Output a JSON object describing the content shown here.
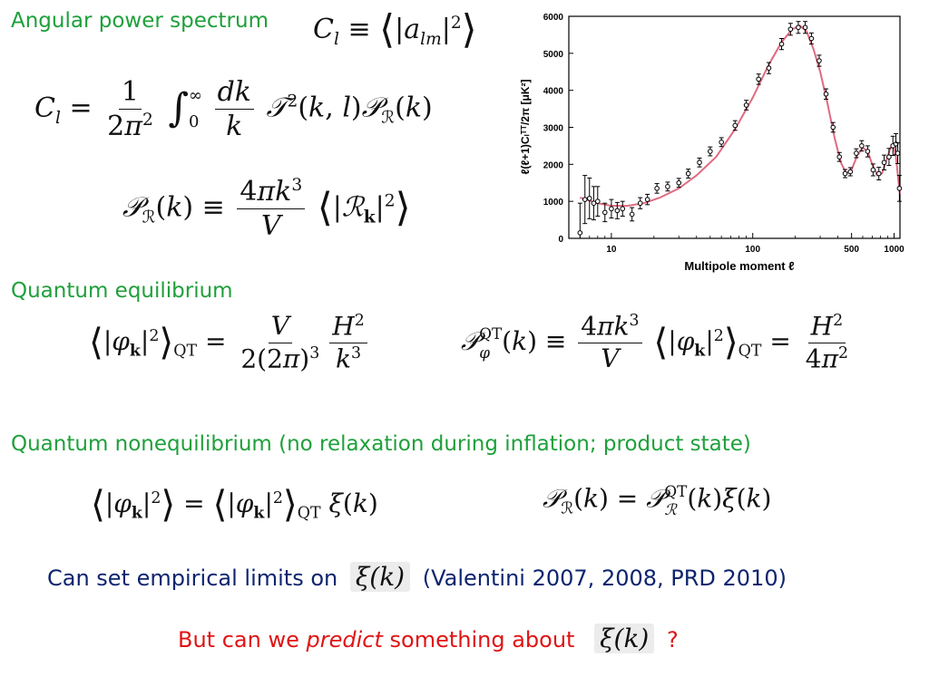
{
  "headings": {
    "aps": "Angular power spectrum",
    "qe": "Quantum equilibrium",
    "qne": "Quantum nonequilibrium (no relaxation during inflation; product state)"
  },
  "limits_line": {
    "prefix": "Can set empirical limits on",
    "xi": "ξ(k)",
    "suffix": "(Valentini 2007, 2008, PRD 2010)",
    "color": "#0d2470"
  },
  "predict_line": {
    "part1": "But can we",
    "emph": "predict",
    "part2": "something about",
    "xi": "ξ(k)",
    "end": "?",
    "color": "#e01414"
  },
  "chart_data": {
    "type": "scatter",
    "xlabel": "Multipole moment ℓ",
    "ylabel": "ℓ(ℓ+1)Cₗᵀᵀ/2π [μK²]",
    "xscale": "log",
    "xlim": [
      5,
      1100
    ],
    "ylim": [
      0,
      6000
    ],
    "xticks": [
      "10",
      "100",
      "500",
      "1000"
    ],
    "xtick_values": [
      10,
      100,
      500,
      1000
    ],
    "yticks": [
      "0",
      "1000",
      "2000",
      "3000",
      "4000",
      "5000",
      "6000"
    ],
    "ytick_values": [
      0,
      1000,
      2000,
      3000,
      4000,
      5000,
      6000
    ],
    "grid": false,
    "curve_color": "#e06a80",
    "points": [
      {
        "x": 6,
        "y": 150,
        "err": 800
      },
      {
        "x": 6.5,
        "y": 1050,
        "err": 650
      },
      {
        "x": 7,
        "y": 1080,
        "err": 550
      },
      {
        "x": 7.5,
        "y": 950,
        "err": 450
      },
      {
        "x": 8,
        "y": 1000,
        "err": 400
      },
      {
        "x": 9,
        "y": 700,
        "err": 250
      },
      {
        "x": 10,
        "y": 800,
        "err": 250
      },
      {
        "x": 11,
        "y": 750,
        "err": 220
      },
      {
        "x": 12,
        "y": 800,
        "err": 200
      },
      {
        "x": 14,
        "y": 650,
        "err": 180
      },
      {
        "x": 16,
        "y": 950,
        "err": 150
      },
      {
        "x": 18,
        "y": 1050,
        "err": 140
      },
      {
        "x": 21,
        "y": 1350,
        "err": 130
      },
      {
        "x": 25,
        "y": 1400,
        "err": 120
      },
      {
        "x": 30,
        "y": 1500,
        "err": 120
      },
      {
        "x": 35,
        "y": 1750,
        "err": 120
      },
      {
        "x": 42,
        "y": 2050,
        "err": 120
      },
      {
        "x": 50,
        "y": 2350,
        "err": 120
      },
      {
        "x": 60,
        "y": 2600,
        "err": 120
      },
      {
        "x": 75,
        "y": 3050,
        "err": 130
      },
      {
        "x": 90,
        "y": 3600,
        "err": 130
      },
      {
        "x": 110,
        "y": 4300,
        "err": 140
      },
      {
        "x": 130,
        "y": 4600,
        "err": 150
      },
      {
        "x": 160,
        "y": 5250,
        "err": 150
      },
      {
        "x": 185,
        "y": 5650,
        "err": 160
      },
      {
        "x": 210,
        "y": 5700,
        "err": 160
      },
      {
        "x": 235,
        "y": 5700,
        "err": 160
      },
      {
        "x": 260,
        "y": 5400,
        "err": 150
      },
      {
        "x": 295,
        "y": 4800,
        "err": 150
      },
      {
        "x": 330,
        "y": 3900,
        "err": 140
      },
      {
        "x": 370,
        "y": 3000,
        "err": 130
      },
      {
        "x": 410,
        "y": 2200,
        "err": 120
      },
      {
        "x": 450,
        "y": 1750,
        "err": 110
      },
      {
        "x": 490,
        "y": 1800,
        "err": 110
      },
      {
        "x": 540,
        "y": 2300,
        "err": 120
      },
      {
        "x": 590,
        "y": 2500,
        "err": 140
      },
      {
        "x": 650,
        "y": 2350,
        "err": 150
      },
      {
        "x": 710,
        "y": 1850,
        "err": 160
      },
      {
        "x": 780,
        "y": 1750,
        "err": 170
      },
      {
        "x": 850,
        "y": 2050,
        "err": 200
      },
      {
        "x": 920,
        "y": 2200,
        "err": 230
      },
      {
        "x": 980,
        "y": 2500,
        "err": 260
      },
      {
        "x": 1030,
        "y": 2550,
        "err": 280
      },
      {
        "x": 1060,
        "y": 2300,
        "err": 280
      },
      {
        "x": 1090,
        "y": 1350,
        "err": 350
      }
    ],
    "model_curve": [
      [
        6,
        1100
      ],
      [
        8,
        950
      ],
      [
        10,
        880
      ],
      [
        13,
        880
      ],
      [
        17,
        950
      ],
      [
        22,
        1100
      ],
      [
        30,
        1350
      ],
      [
        40,
        1700
      ],
      [
        55,
        2200
      ],
      [
        75,
        2950
      ],
      [
        100,
        3800
      ],
      [
        130,
        4700
      ],
      [
        160,
        5300
      ],
      [
        190,
        5650
      ],
      [
        215,
        5750
      ],
      [
        240,
        5600
      ],
      [
        270,
        5100
      ],
      [
        300,
        4500
      ],
      [
        340,
        3600
      ],
      [
        380,
        2700
      ],
      [
        420,
        2050
      ],
      [
        460,
        1750
      ],
      [
        500,
        1850
      ],
      [
        550,
        2250
      ],
      [
        600,
        2450
      ],
      [
        650,
        2350
      ],
      [
        700,
        2000
      ],
      [
        760,
        1700
      ],
      [
        820,
        1750
      ],
      [
        880,
        2100
      ],
      [
        940,
        2450
      ],
      [
        990,
        2500
      ],
      [
        1030,
        2200
      ],
      [
        1070,
        1600
      ],
      [
        1100,
        1200
      ]
    ]
  }
}
